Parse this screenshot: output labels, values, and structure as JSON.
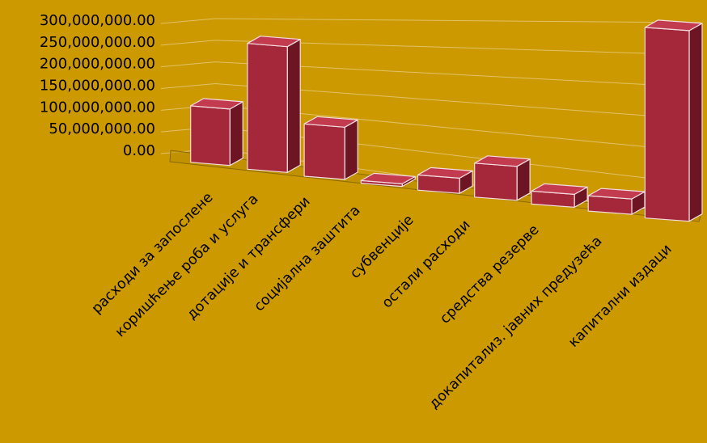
{
  "chart_data": {
    "type": "bar",
    "style": "3d-perspective",
    "categories": [
      "расходи за запослене",
      "коришћење роба и услуга",
      "дотације и трансфери",
      "социјална заштита",
      "субвенције",
      "остали расходи",
      "средства резерве",
      "докапитализ. јавних предузећа",
      "капитални издаци"
    ],
    "values": [
      125000000,
      265000000,
      105000000,
      5000000,
      28000000,
      60000000,
      22000000,
      25000000,
      300000000
    ],
    "yticks": [
      "0.00",
      "50,000,000.00",
      "100,000,000.00",
      "150,000,000.00",
      "200,000,000.00",
      "250,000,000.00",
      "300,000,000.00"
    ],
    "ylim": [
      0,
      300000000
    ],
    "grid": true,
    "legend": "none",
    "colors": {
      "background": "#CC9900",
      "bar_front": "#A4273A",
      "bar_side": "#6E1524",
      "bar_top": "#C23B4F",
      "bar_edge": "#F3DDE0",
      "grid": "#E2C266"
    }
  }
}
